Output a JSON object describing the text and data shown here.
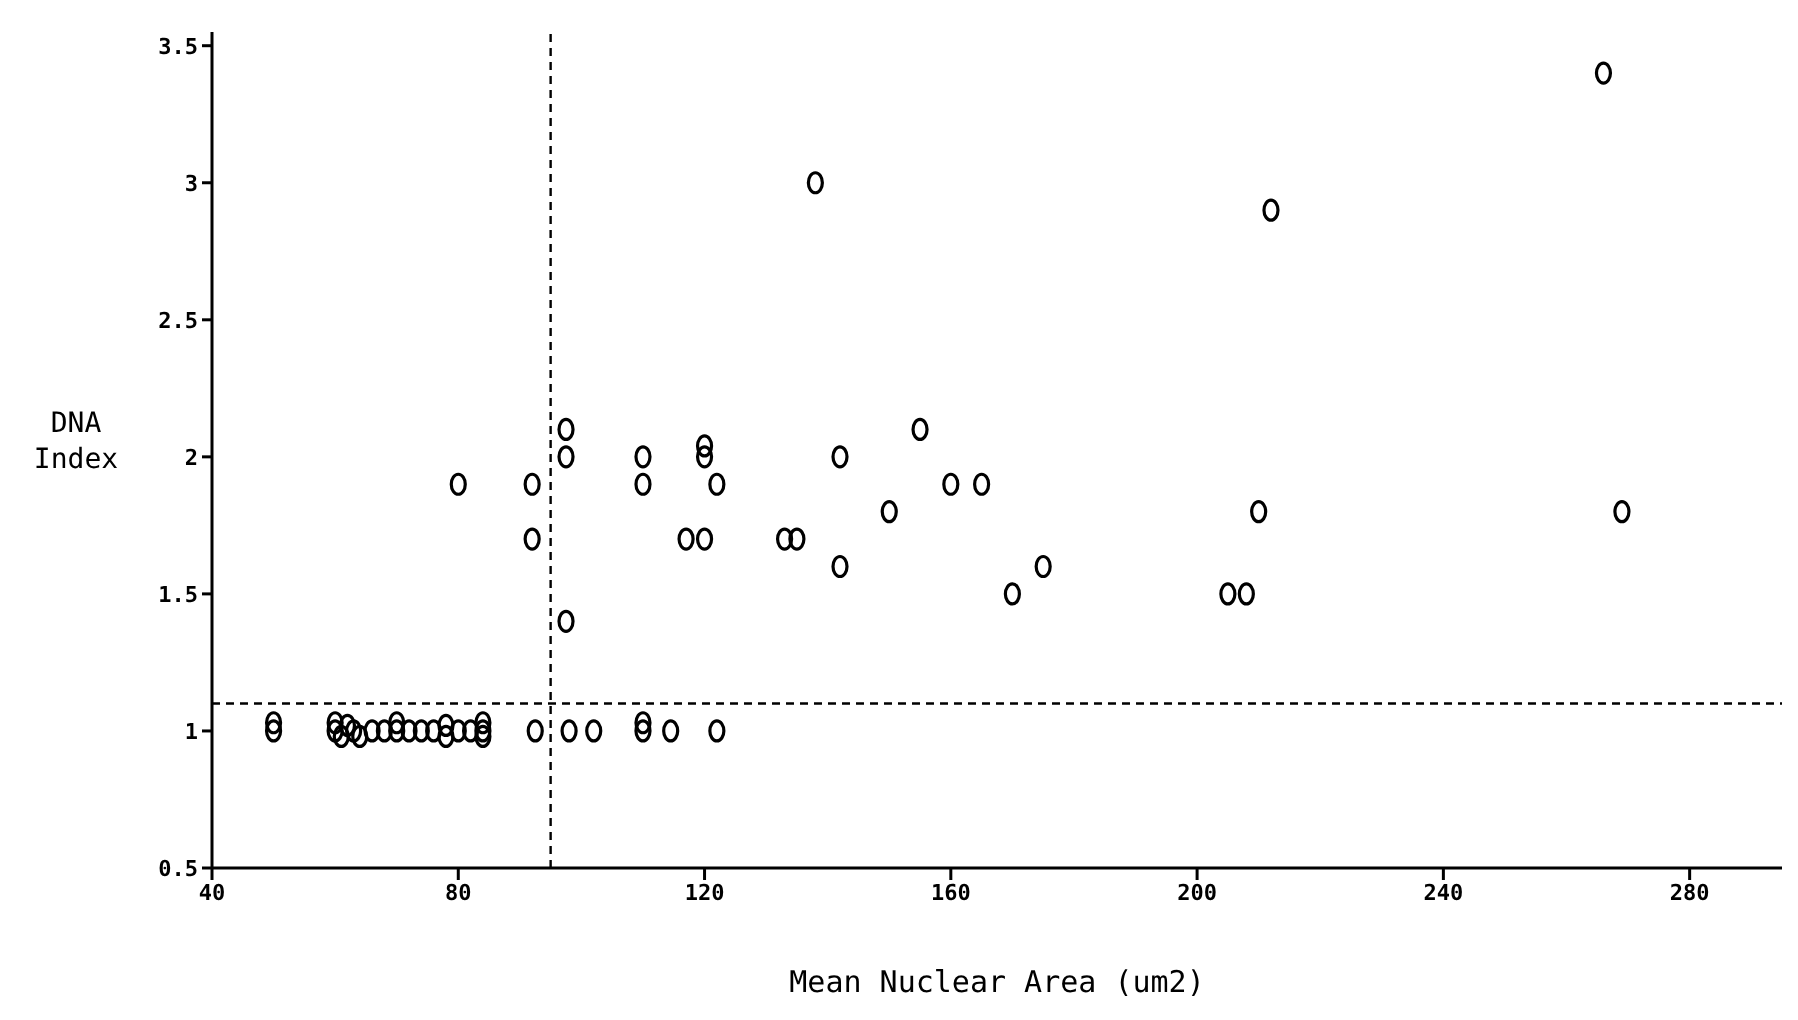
{
  "chart_data": {
    "type": "scatter",
    "xlabel": "Mean Nuclear Area (um2)",
    "ylabel": "DNA Index",
    "marker": "circle",
    "grid": false,
    "legend": false,
    "xlim": [
      40,
      295
    ],
    "xticks": [
      40,
      80,
      120,
      160,
      200,
      240,
      280
    ],
    "ylim": [
      0.5,
      3.55
    ],
    "yticks": [
      0.5,
      1,
      1.5,
      2,
      2.5,
      3,
      3.5
    ],
    "ref_lines": [
      {
        "axis": "x",
        "value": 95,
        "color": "#000000",
        "line_style": "dashed"
      },
      {
        "axis": "y",
        "value": 1.1,
        "color": "#000000",
        "line_style": "dashed"
      }
    ],
    "series": [
      {
        "color": "#000000",
        "x": [
          50,
          50,
          60,
          60,
          61,
          62,
          63,
          64,
          66,
          68,
          70,
          70,
          72,
          74,
          76,
          78,
          78,
          80,
          82,
          84,
          84,
          84,
          92.5,
          98,
          102,
          110,
          110,
          114.5,
          122,
          80,
          92,
          92,
          97.5,
          97.5,
          97.5,
          110,
          110,
          120,
          120,
          122,
          117,
          120,
          133,
          135,
          142,
          142,
          155,
          150,
          160,
          165,
          170,
          138,
          212,
          210,
          205,
          208,
          175,
          266,
          269
        ],
        "values": [
          1.0,
          1.03,
          1.0,
          1.03,
          0.98,
          1.02,
          1.0,
          0.98,
          1.0,
          1.0,
          1.0,
          1.03,
          1.0,
          1.0,
          1.0,
          0.98,
          1.02,
          1.0,
          1.0,
          1.0,
          0.98,
          1.03,
          1.0,
          1.0,
          1.0,
          1.0,
          1.03,
          1.0,
          1.0,
          1.9,
          1.9,
          1.7,
          2.1,
          2.0,
          1.4,
          2.0,
          1.9,
          2.04,
          2.0,
          1.9,
          1.7,
          1.7,
          1.7,
          1.7,
          2.0,
          1.6,
          2.1,
          1.8,
          1.9,
          1.9,
          1.5,
          3.0,
          2.9,
          1.8,
          1.5,
          1.5,
          1.6,
          3.4,
          1.8
        ]
      }
    ]
  }
}
